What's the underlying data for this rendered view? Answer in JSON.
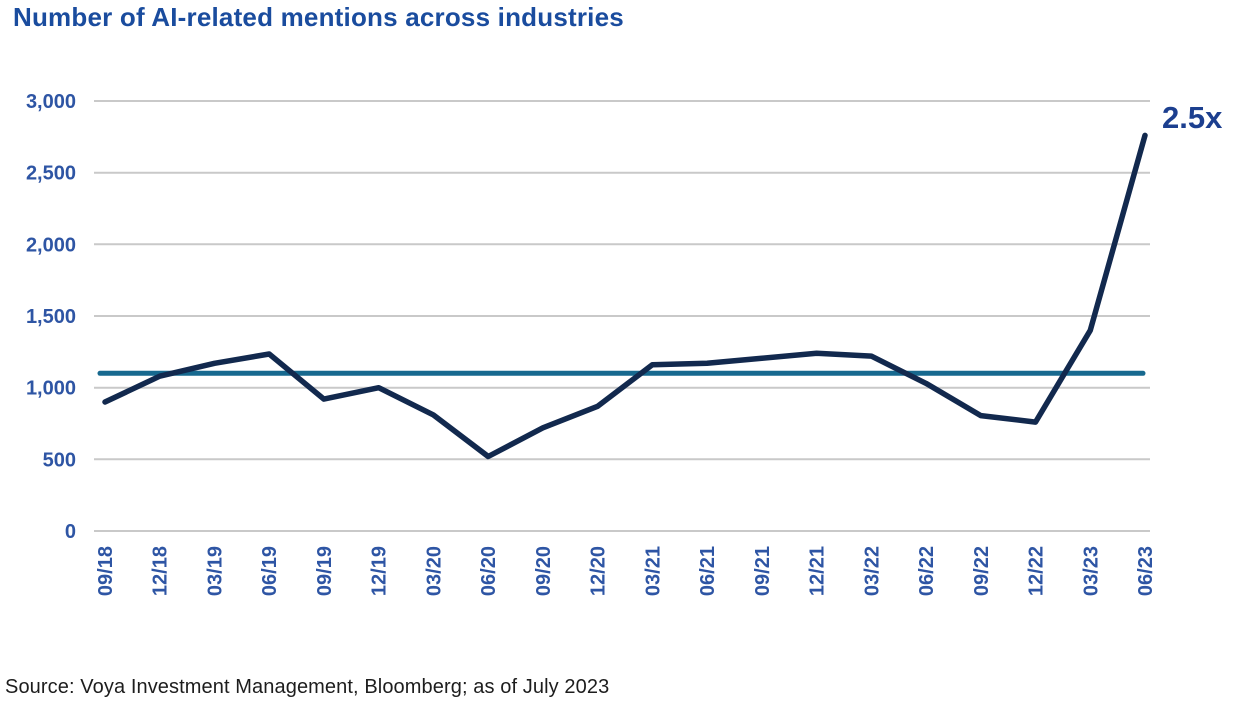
{
  "page": {
    "title": "Number of AI-related mentions across industries",
    "source": "Source: Voya Investment Management, Bloomberg; as of July 2023"
  },
  "colors": {
    "title_blue": "#1a4c9e",
    "tick_label_blue": "#2e55a4",
    "series_navy": "#12294e",
    "average_teal": "#17698f",
    "gridline_gray": "#c9c9c9",
    "annotation_blue": "#1c3f8f",
    "source_text": "#1d1d1d"
  },
  "chart_data": {
    "type": "line",
    "title": "Number of AI-related mentions across industries",
    "x": [
      "09/18",
      "12/18",
      "03/19",
      "06/19",
      "09/19",
      "12/19",
      "03/20",
      "06/20",
      "09/20",
      "12/20",
      "03/21",
      "06/21",
      "09/21",
      "12/21",
      "03/22",
      "06/22",
      "09/22",
      "12/22",
      "03/23",
      "06/23"
    ],
    "series": [
      {
        "name": "AI-related mentions",
        "values": [
          900,
          1080,
          1170,
          1235,
          920,
          1000,
          810,
          520,
          720,
          870,
          1160,
          1170,
          1205,
          1240,
          1220,
          1030,
          805,
          760,
          1400,
          2760
        ]
      }
    ],
    "average_line_value": 1100,
    "ylim": [
      0,
      3000
    ],
    "ytick_interval": 500,
    "ytick_labels": [
      "0",
      "500",
      "1,000",
      "1,500",
      "2,000",
      "2,500",
      "3,000"
    ],
    "xlabel": "",
    "ylabel": "",
    "grid": "horizontal",
    "legend": "none",
    "x_label_rotation": -90,
    "annotation": {
      "text": "2.5x",
      "position": "end-of-series"
    }
  }
}
